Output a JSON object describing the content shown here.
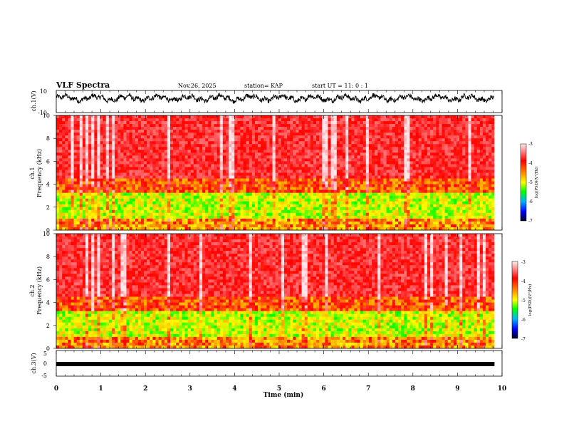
{
  "header": {
    "title": "VLF Spectra",
    "date": "Nov.26, 2025",
    "station": "station= KAP",
    "start": "start UT =  11: 0 : 1"
  },
  "chart_data": [
    {
      "type": "line",
      "name": "ch1-waveform",
      "ylabel": "ch.1(V)",
      "ylim": [
        -10,
        10
      ],
      "yticks": [
        "10",
        "-10"
      ],
      "xlim": [
        0,
        10
      ],
      "x_end_min": 9.83,
      "baseline": 3,
      "amplitude": 3.5
    },
    {
      "type": "heatmap",
      "name": "ch1-spectrogram",
      "ylabel": "ch.1",
      "ylabel2": "Frequency (kHz)",
      "ylim": [
        0,
        10
      ],
      "yticks": [
        0,
        2,
        4,
        6,
        8,
        10
      ],
      "xlim": [
        0,
        10
      ],
      "x_end_min": 9.83,
      "colorbar": {
        "label": "log(PSD)(V²/Hz)",
        "range": [
          -7,
          -3
        ],
        "ticks": [
          "-3",
          "-4",
          "-5",
          "-6",
          "-7"
        ]
      }
    },
    {
      "type": "heatmap",
      "name": "ch2-spectrogram",
      "ylabel": "ch.2",
      "ylabel2": "Frequency (kHz)",
      "ylim": [
        0,
        10
      ],
      "yticks": [
        0,
        2,
        4,
        6,
        8,
        10
      ],
      "xlim": [
        0,
        10
      ],
      "x_end_min": 9.83,
      "colorbar": {
        "label": "log(PSD)(V²/Hz)",
        "range": [
          -7,
          -3
        ],
        "ticks": [
          "-3",
          "-4",
          "-5",
          "-6",
          "-7"
        ]
      }
    },
    {
      "type": "line",
      "name": "ch3-waveform",
      "ylabel": "ch.3(V)",
      "ylim": [
        -5,
        5
      ],
      "yticks": [
        "5",
        "0",
        "-5"
      ],
      "xlim": [
        0,
        10
      ],
      "x_end_min": 9.83,
      "baseline": -1
    }
  ],
  "xaxis": {
    "label": "Time (min)",
    "ticks": [
      "0",
      "1",
      "2",
      "3",
      "4",
      "5",
      "6",
      "7",
      "8",
      "9",
      "10"
    ]
  }
}
